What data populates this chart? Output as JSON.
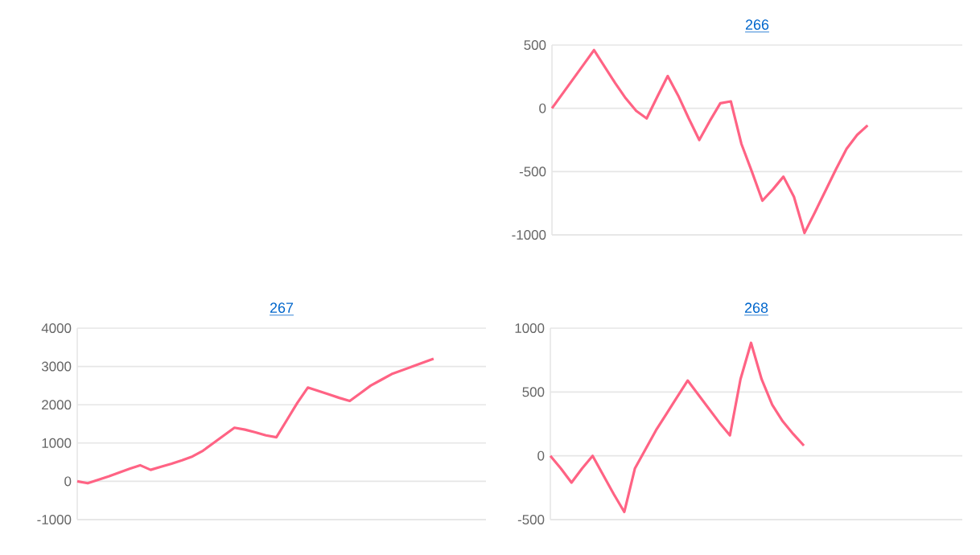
{
  "chart_data": [
    {
      "type": "line",
      "title": "266",
      "categories": [
        null,
        null,
        null,
        null,
        null,
        null,
        null,
        null,
        null,
        null,
        null,
        null,
        null,
        null,
        null,
        null,
        null,
        null,
        null,
        null,
        null,
        null,
        null,
        null,
        null,
        null,
        null,
        null,
        null,
        null,
        null,
        null,
        null,
        null,
        null,
        null,
        null,
        null,
        null,
        null
      ],
      "values": [
        0,
        115,
        230,
        345,
        460,
        330,
        200,
        80,
        -20,
        -80,
        90,
        255,
        100,
        -80,
        -250,
        -100,
        40,
        55,
        -280,
        -500,
        -730,
        -640,
        -540,
        -700,
        -985,
        -820,
        -650,
        -480,
        -320,
        -210,
        -135,
        null,
        null,
        null,
        null,
        null,
        null,
        null,
        null,
        null
      ],
      "color": "#ff6384",
      "ylim": [
        -1000,
        500
      ],
      "yticks": [
        -1000,
        -500,
        0,
        500
      ],
      "grid": "y",
      "tick_labels": "y"
    },
    {
      "type": "line",
      "title": "267",
      "categories": [
        null,
        null,
        null,
        null,
        null,
        null,
        null,
        null,
        null,
        null,
        null,
        null,
        null,
        null,
        null,
        null,
        null,
        null,
        null,
        null,
        null,
        null,
        null,
        null,
        null,
        null,
        null,
        null,
        null,
        null,
        null,
        null,
        null,
        null,
        null,
        null,
        null,
        null,
        null,
        null
      ],
      "values": [
        0,
        -50,
        40,
        130,
        230,
        330,
        420,
        300,
        380,
        460,
        550,
        650,
        800,
        1000,
        1200,
        1400,
        1350,
        1280,
        1200,
        1150,
        1600,
        2050,
        2450,
        2360,
        2270,
        2180,
        2100,
        2300,
        2500,
        2650,
        2800,
        2900,
        3000,
        3100,
        3200,
        null,
        null,
        null,
        null,
        null
      ],
      "color": "#ff6384",
      "ylim": [
        -1000,
        4000
      ],
      "yticks": [
        -1000,
        0,
        1000,
        2000,
        3000,
        4000
      ],
      "grid": "y",
      "tick_labels": "y"
    },
    {
      "type": "line",
      "title": "268",
      "categories": [
        null,
        null,
        null,
        null,
        null,
        null,
        null,
        null,
        null,
        null,
        null,
        null,
        null,
        null,
        null,
        null,
        null,
        null,
        null,
        null,
        null,
        null,
        null,
        null,
        null,
        null,
        null,
        null,
        null,
        null,
        null,
        null,
        null,
        null,
        null,
        null,
        null,
        null,
        null,
        null
      ],
      "values": [
        0,
        -100,
        -210,
        -100,
        0,
        -150,
        -300,
        -440,
        -100,
        50,
        200,
        330,
        460,
        590,
        480,
        370,
        260,
        160,
        600,
        885,
        600,
        400,
        270,
        170,
        80,
        null,
        null,
        null,
        null,
        null,
        null,
        null,
        null,
        null,
        null,
        null,
        null,
        null,
        null,
        null
      ],
      "color": "#ff6384",
      "ylim": [
        -500,
        1000
      ],
      "yticks": [
        -500,
        0,
        500,
        1000
      ],
      "grid": "y",
      "tick_labels": "y"
    }
  ]
}
